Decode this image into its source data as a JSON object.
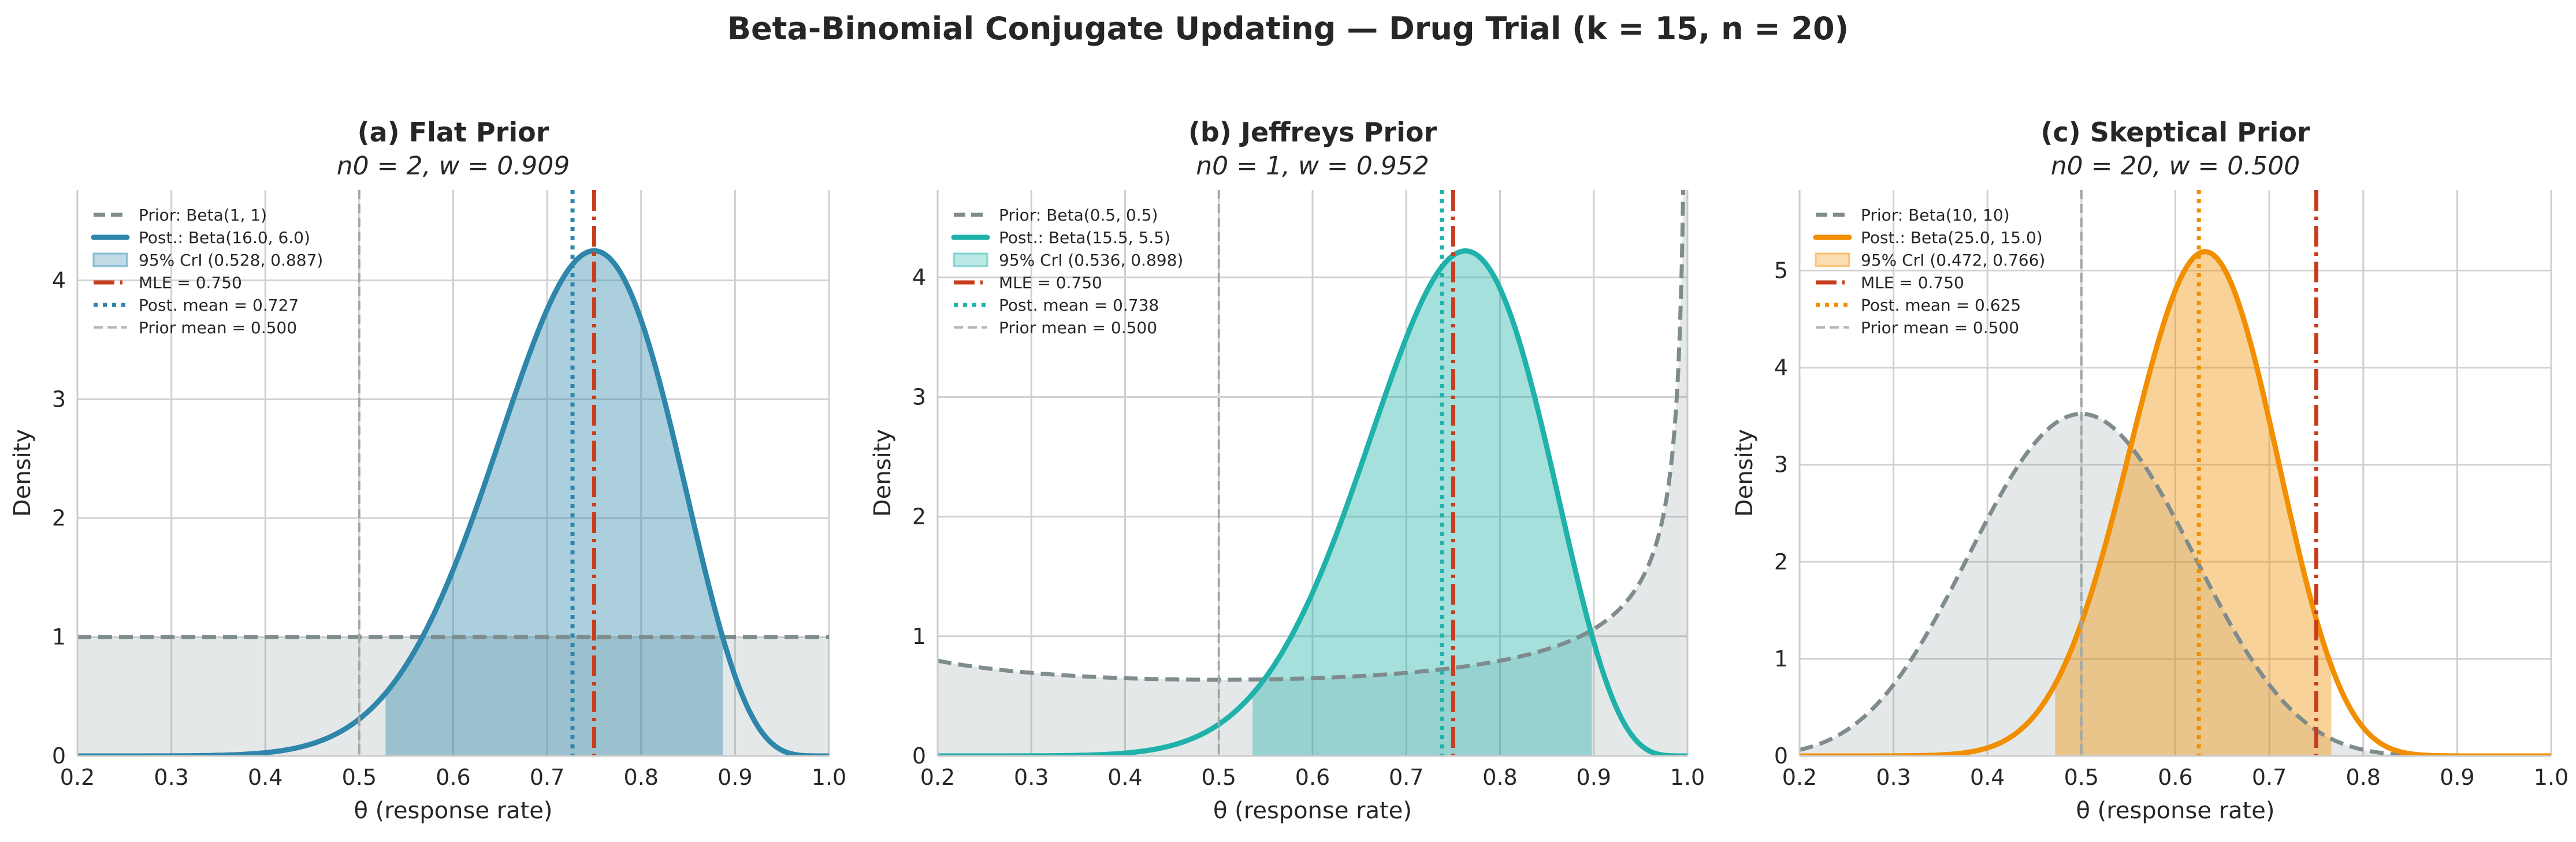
{
  "suptitle": "Beta-Binomial Conjugate Updating — Drug Trial (k = 15, n = 20)",
  "chart_data": [
    {
      "type": "line",
      "title": "(a) Flat Prior",
      "subtitle": "n0 = 2,   w = 0.909",
      "xlabel": "θ (response rate)",
      "ylabel": "Density",
      "xlim": [
        0.2,
        1.0
      ],
      "ylim": [
        0,
        4.76
      ],
      "xticks": [
        "0.2",
        "0.3",
        "0.4",
        "0.5",
        "0.6",
        "0.7",
        "0.8",
        "0.9",
        "1.0"
      ],
      "yticks": [
        "0",
        "1",
        "2",
        "3",
        "4"
      ],
      "grid": true,
      "legend_position": "top-left",
      "color": "#2E86AB",
      "prior": {
        "a": 1,
        "b": 1
      },
      "posterior": {
        "a": 16.0,
        "b": 6.0
      },
      "cri": [
        0.528,
        0.887
      ],
      "mle": 0.75,
      "post_mean": 0.727,
      "prior_mean": 0.5,
      "legend": [
        "Prior: Beta(1, 1)",
        "Post.: Beta(16.0, 6.0)",
        "95% CrI (0.528, 0.887)",
        "MLE = 0.750",
        "Post. mean = 0.727",
        "Prior mean = 0.500"
      ]
    },
    {
      "type": "line",
      "title": "(b) Jeffreys Prior",
      "subtitle": "n0 = 1,   w = 0.952",
      "xlabel": "θ (response rate)",
      "ylabel": "Density",
      "xlim": [
        0.2,
        1.0
      ],
      "ylim": [
        0,
        4.73
      ],
      "xticks": [
        "0.2",
        "0.3",
        "0.4",
        "0.5",
        "0.6",
        "0.7",
        "0.8",
        "0.9",
        "1.0"
      ],
      "yticks": [
        "0",
        "1",
        "2",
        "3",
        "4"
      ],
      "grid": true,
      "legend_position": "top-left",
      "color": "#20B2AA",
      "prior": {
        "a": 0.5,
        "b": 0.5
      },
      "posterior": {
        "a": 15.5,
        "b": 5.5
      },
      "cri": [
        0.536,
        0.898
      ],
      "mle": 0.75,
      "post_mean": 0.738,
      "prior_mean": 0.5,
      "legend": [
        "Prior: Beta(0.5, 0.5)",
        "Post.: Beta(15.5, 5.5)",
        "95% CrI (0.536, 0.898)",
        "MLE = 0.750",
        "Post. mean = 0.738",
        "Prior mean = 0.500"
      ]
    },
    {
      "type": "line",
      "title": "(c) Skeptical Prior",
      "subtitle": "n0 = 20,   w = 0.500",
      "xlabel": "θ (response rate)",
      "ylabel": "Density",
      "xlim": [
        0.2,
        1.0
      ],
      "ylim": [
        0,
        5.83
      ],
      "xticks": [
        "0.2",
        "0.3",
        "0.4",
        "0.5",
        "0.6",
        "0.7",
        "0.8",
        "0.9",
        "1.0"
      ],
      "yticks": [
        "0",
        "1",
        "2",
        "3",
        "4",
        "5"
      ],
      "grid": true,
      "legend_position": "top-left",
      "color": "#F18F01",
      "prior": {
        "a": 10,
        "b": 10
      },
      "posterior": {
        "a": 25.0,
        "b": 15.0
      },
      "cri": [
        0.472,
        0.766
      ],
      "mle": 0.75,
      "post_mean": 0.625,
      "prior_mean": 0.5,
      "legend": [
        "Prior: Beta(10, 10)",
        "Post.: Beta(25.0, 15.0)",
        "95% CrI (0.472, 0.766)",
        "MLE = 0.750",
        "Post. mean = 0.625",
        "Prior mean = 0.500"
      ]
    }
  ],
  "colors": {
    "prior": "#7F8C8D",
    "mle": "#C73E1D",
    "prior_mean": "#B0B8B8",
    "grid": "#D0D0D0"
  }
}
